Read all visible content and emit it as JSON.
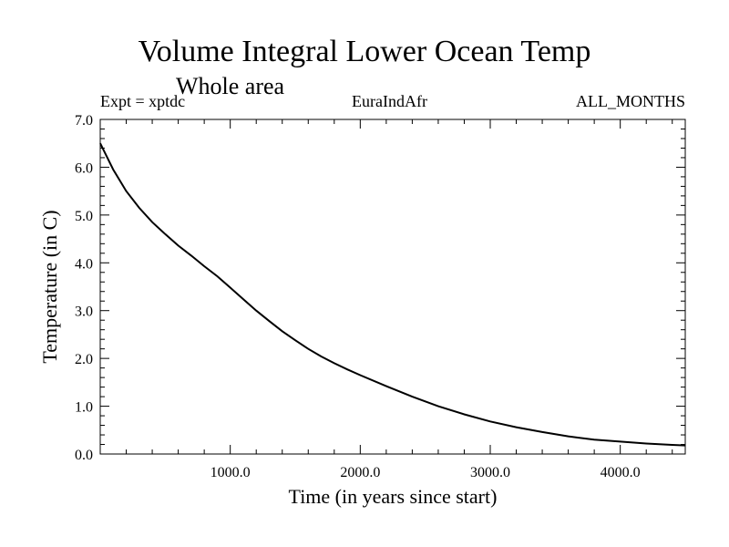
{
  "chart_data": {
    "type": "line",
    "title": "Volume Integral Lower Ocean Temp",
    "subtitle": "Whole area",
    "header_left": "Expt = xptdc",
    "header_center": "EuraIndAfr",
    "header_right": "ALL_MONTHS",
    "xlabel": "Time (in years since start)",
    "ylabel": "Temperature (in C)",
    "xlim": [
      0,
      4500
    ],
    "ylim": [
      0.0,
      7.0
    ],
    "x_ticks": [
      1000,
      2000,
      3000,
      4000
    ],
    "x_tick_labels": [
      "1000.0",
      "2000.0",
      "3000.0",
      "4000.0"
    ],
    "y_ticks": [
      0,
      1,
      2,
      3,
      4,
      5,
      6,
      7
    ],
    "y_tick_labels": [
      "0.0",
      "1.0",
      "2.0",
      "3.0",
      "4.0",
      "5.0",
      "6.0",
      "7.0"
    ],
    "grid": false,
    "series": [
      {
        "color": "#000000",
        "x": [
          0,
          100,
          200,
          300,
          400,
          500,
          600,
          700,
          800,
          900,
          1000,
          1100,
          1200,
          1300,
          1400,
          1500,
          1600,
          1700,
          1800,
          1900,
          2000,
          2200,
          2400,
          2600,
          2800,
          3000,
          3200,
          3400,
          3600,
          3800,
          4000,
          4200,
          4400,
          4500
        ],
        "y": [
          6.5,
          5.95,
          5.5,
          5.15,
          4.85,
          4.6,
          4.36,
          4.15,
          3.93,
          3.72,
          3.48,
          3.24,
          3.0,
          2.78,
          2.57,
          2.38,
          2.2,
          2.04,
          1.9,
          1.77,
          1.65,
          1.42,
          1.2,
          1.0,
          0.83,
          0.68,
          0.56,
          0.46,
          0.37,
          0.3,
          0.26,
          0.22,
          0.19,
          0.18
        ]
      }
    ]
  }
}
